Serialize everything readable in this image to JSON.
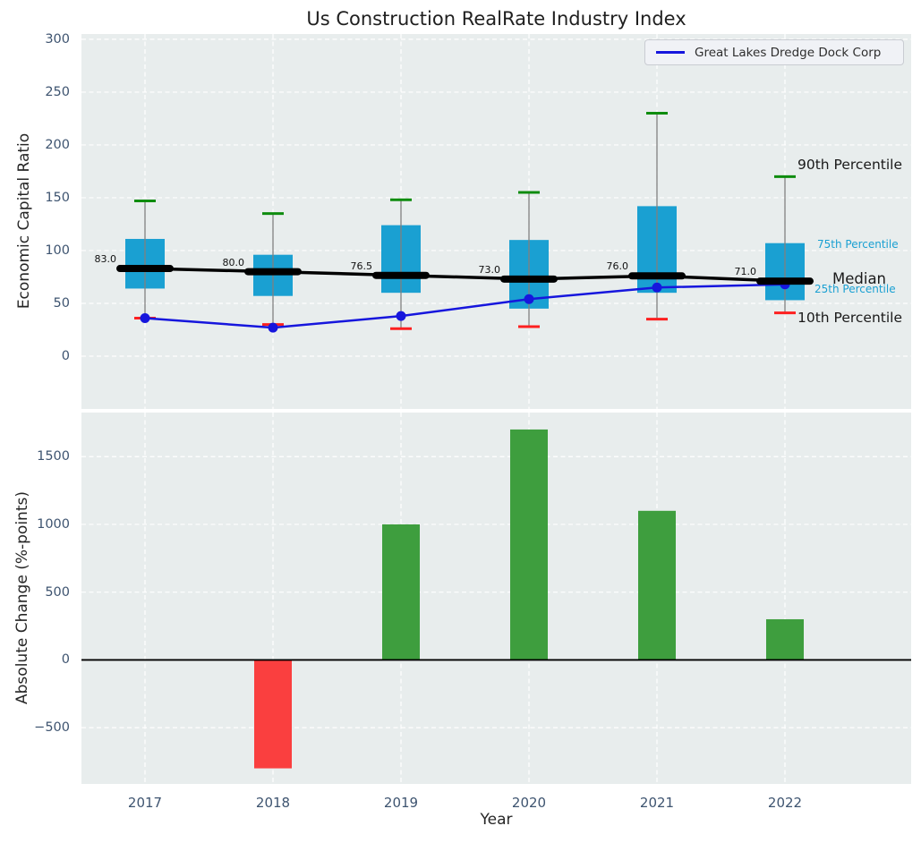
{
  "title": "Us Construction RealRate Industry Index",
  "colors": {
    "box_fill": "#1aa0d2",
    "company_line": "#1616dd",
    "median_line": "#000000",
    "whisker": "#808080",
    "cap_high": "#0e8c0e",
    "cap_low": "#fd2020",
    "bar_positive": "#3e9e3e",
    "bar_negative": "#fa3f3f",
    "plot_background": "#e8eded",
    "gridline": "#ffffff",
    "tick_label": "#3e5470",
    "axis_label": "#262626",
    "annotation_dark": "#1a1a1a",
    "annotation_cyan": "#1aa0d2",
    "zero_line": "#000000"
  },
  "chart_data": [
    {
      "type": "boxplot",
      "ylabel": "Economic Capital Ratio",
      "categories": [
        "2017",
        "2018",
        "2019",
        "2020",
        "2021",
        "2022"
      ],
      "yticks": [
        0,
        50,
        100,
        150,
        200,
        250,
        300
      ],
      "ylim": [
        -50,
        305
      ],
      "grid": true,
      "legend": {
        "position": "upper right",
        "entries": [
          {
            "label": "Great Lakes Dredge Dock Corp",
            "color": "#1616dd"
          }
        ]
      },
      "series": {
        "p90_whisker_high": [
          147,
          135,
          148,
          155,
          230,
          170
        ],
        "p75_box_top": [
          111,
          96,
          124,
          110,
          142,
          107
        ],
        "median": [
          83.0,
          80.0,
          76.5,
          73.0,
          76.0,
          71.0
        ],
        "p25_box_bottom": [
          64,
          57,
          60,
          45,
          60,
          53
        ],
        "p10_whisker_low": [
          36,
          30,
          26,
          28,
          35,
          41
        ],
        "company": {
          "name": "Great Lakes Dredge Dock Corp",
          "values": [
            36,
            27,
            38,
            54,
            65,
            68
          ]
        }
      },
      "median_labels": [
        "83.0",
        "80.0",
        "76.5",
        "73.0",
        "76.0",
        "71.0"
      ],
      "annotations": [
        {
          "text": "90th Percentile",
          "style": "dark"
        },
        {
          "text": "75th Percentile",
          "style": "cyan"
        },
        {
          "text": "Median",
          "style": "dark"
        },
        {
          "text": "25th Percentile",
          "style": "cyan"
        },
        {
          "text": "10th Percentile",
          "style": "dark"
        }
      ]
    },
    {
      "type": "bar",
      "xlabel": "Year",
      "ylabel": "Absolute Change (%-points)",
      "categories": [
        "2017",
        "2018",
        "2019",
        "2020",
        "2021",
        "2022"
      ],
      "values": [
        0,
        -800,
        1000,
        1700,
        1100,
        300
      ],
      "yticks": [
        -500,
        0,
        500,
        1000,
        1500
      ],
      "ylim": [
        -915,
        1825
      ],
      "grid": true
    }
  ]
}
